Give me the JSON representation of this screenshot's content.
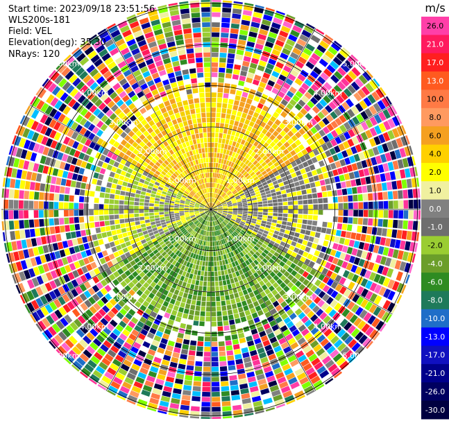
{
  "header": {
    "start_time": "Start time: 2023/09/18 23:51:56",
    "instrument": "WLS200s-181",
    "field": "Field: VEL",
    "elevation": "Elevation(deg): 35.30",
    "nrays": "NRays: 120"
  },
  "colorbar": {
    "unit": "m/s",
    "bands": [
      {
        "label": "26.0",
        "color": "#ff3fa8"
      },
      {
        "label": "21.0",
        "color": "#ff1a5e"
      },
      {
        "label": "17.0",
        "color": "#ff1f1f"
      },
      {
        "label": "13.0",
        "color": "#ff5a1f"
      },
      {
        "label": "10.0",
        "color": "#ff7a45"
      },
      {
        "label": "8.0",
        "color": "#ff9a60"
      },
      {
        "label": "6.0",
        "color": "#f5a020"
      },
      {
        "label": "4.0",
        "color": "#ffd000"
      },
      {
        "label": "2.0",
        "color": "#ffff00"
      },
      {
        "label": "1.0",
        "color": "#f0f0a0"
      },
      {
        "label": "0.0",
        "color": "#808080"
      },
      {
        "label": "-1.0",
        "color": "#6e6e6e"
      },
      {
        "label": "-2.0",
        "color": "#9acd32"
      },
      {
        "label": "-4.0",
        "color": "#6b9e2a"
      },
      {
        "label": "-6.0",
        "color": "#2e8b22"
      },
      {
        "label": "-8.0",
        "color": "#1e7a5a"
      },
      {
        "label": "-10.0",
        "color": "#1f6ec8"
      },
      {
        "label": "-13.0",
        "color": "#0000ff"
      },
      {
        "label": "-17.0",
        "color": "#1010c0"
      },
      {
        "label": "-21.0",
        "color": "#00008b"
      },
      {
        "label": "-26.0",
        "color": "#000060"
      },
      {
        "label": "-30.0",
        "color": "#000040"
      }
    ]
  },
  "chart_data": {
    "type": "ppi",
    "field": "VEL",
    "unit": "m/s",
    "nrays": 120,
    "range_rings_km": [
      {
        "value": 1.0,
        "label": "1.00km"
      },
      {
        "value": 2.0,
        "label": "2.00km"
      },
      {
        "value": 3.0,
        "label": "3.00km"
      },
      {
        "value": 4.0,
        "label": "4.00km"
      },
      {
        "value": 5.0,
        "label": "5.00km"
      }
    ],
    "ring_label_angles_deg": [
      45,
      135,
      225,
      315
    ],
    "max_range_km": 6.6,
    "azimuth_lines_deg": [
      0,
      30,
      60,
      90,
      120,
      150,
      180,
      210,
      240,
      270,
      300,
      330
    ],
    "velocity_regions": [
      {
        "description": "north sector, mostly positive",
        "az_from": 300,
        "az_to": 60,
        "r_from": 0.0,
        "r_to": 3.2,
        "colors": [
          "#ffff00",
          "#f5d000",
          "#f5a020"
        ]
      },
      {
        "description": "east / west low near zero",
        "az_from": 60,
        "az_to": 120,
        "r_from": 0.0,
        "r_to": 3.0,
        "colors": [
          "#808080",
          "#6e6e6e",
          "#ffff00"
        ]
      },
      {
        "description": "south sector, negative",
        "az_from": 120,
        "az_to": 240,
        "r_from": 0.0,
        "r_to": 3.2,
        "colors": [
          "#9acd32",
          "#6b9e2a",
          "#2e8b22"
        ]
      },
      {
        "description": "west sector near zero",
        "az_from": 240,
        "az_to": 300,
        "r_from": 0.0,
        "r_to": 3.0,
        "colors": [
          "#808080",
          "#9acd32",
          "#ffff00"
        ]
      }
    ]
  }
}
